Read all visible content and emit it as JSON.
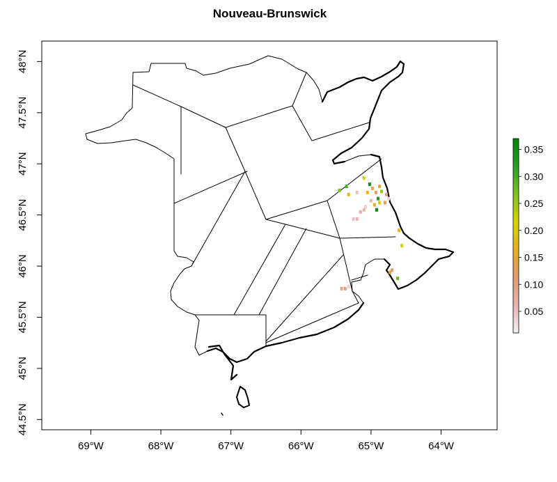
{
  "title": "Nouveau-Brunswick",
  "x_axis": {
    "ticks": [
      {
        "lon": -69,
        "label": "69°W"
      },
      {
        "lon": -68,
        "label": "68°W"
      },
      {
        "lon": -67,
        "label": "67°W"
      },
      {
        "lon": -66,
        "label": "66°W"
      },
      {
        "lon": -65,
        "label": "65°W"
      },
      {
        "lon": -64,
        "label": "64°W"
      }
    ]
  },
  "y_axis": {
    "ticks": [
      {
        "lat": 48.0,
        "label": "48°N"
      },
      {
        "lat": 47.5,
        "label": "47.5°N"
      },
      {
        "lat": 47.0,
        "label": "47°N"
      },
      {
        "lat": 46.5,
        "label": "46.5°N"
      },
      {
        "lat": 46.0,
        "label": "46°N"
      },
      {
        "lat": 45.5,
        "label": "45.5°N"
      },
      {
        "lat": 45.0,
        "label": "45°N"
      },
      {
        "lat": 44.5,
        "label": "44.5°N"
      }
    ]
  },
  "legend": {
    "min": 0.01,
    "max": 0.37,
    "ticks": [
      {
        "value": 0.05,
        "label": "0.05"
      },
      {
        "value": 0.1,
        "label": "0.10"
      },
      {
        "value": 0.15,
        "label": "0.15"
      },
      {
        "value": 0.2,
        "label": "0.20"
      },
      {
        "value": 0.25,
        "label": "0.25"
      },
      {
        "value": 0.3,
        "label": "0.30"
      },
      {
        "value": 0.35,
        "label": "0.35"
      }
    ],
    "colors": [
      "#f2f2f2",
      "#eab2b2",
      "#e39a6e",
      "#e6b020",
      "#d6d600",
      "#7ec41c",
      "#26a026",
      "#008800"
    ]
  },
  "chart_data": {
    "type": "heatmap",
    "title": "Nouveau-Brunswick",
    "xlim": [
      -69.7,
      -63.2
    ],
    "ylim": [
      44.4,
      48.2
    ],
    "xlabel": "",
    "ylabel": "",
    "value_range": [
      0.01,
      0.37
    ],
    "cells": [
      {
        "lon": -65.45,
        "lat": 46.74,
        "value": 0.27
      },
      {
        "lon": -65.35,
        "lat": 46.78,
        "value": 0.3
      },
      {
        "lon": -65.32,
        "lat": 46.7,
        "value": 0.18
      },
      {
        "lon": -65.2,
        "lat": 46.72,
        "value": 0.05
      },
      {
        "lon": -65.1,
        "lat": 46.86,
        "value": 0.22
      },
      {
        "lon": -65.02,
        "lat": 46.8,
        "value": 0.35
      },
      {
        "lon": -64.98,
        "lat": 46.76,
        "value": 0.15
      },
      {
        "lon": -64.93,
        "lat": 46.72,
        "value": 0.12
      },
      {
        "lon": -65.05,
        "lat": 46.72,
        "value": 0.18
      },
      {
        "lon": -64.9,
        "lat": 46.66,
        "value": 0.33
      },
      {
        "lon": -65.0,
        "lat": 46.64,
        "value": 0.06
      },
      {
        "lon": -64.88,
        "lat": 46.62,
        "value": 0.2
      },
      {
        "lon": -64.95,
        "lat": 46.6,
        "value": 0.16
      },
      {
        "lon": -65.08,
        "lat": 46.58,
        "value": 0.04
      },
      {
        "lon": -65.1,
        "lat": 46.55,
        "value": 0.06
      },
      {
        "lon": -65.15,
        "lat": 46.53,
        "value": 0.07
      },
      {
        "lon": -64.92,
        "lat": 46.55,
        "value": 0.36
      },
      {
        "lon": -65.2,
        "lat": 46.46,
        "value": 0.06
      },
      {
        "lon": -65.25,
        "lat": 46.46,
        "value": 0.05
      },
      {
        "lon": -64.8,
        "lat": 46.62,
        "value": 0.12
      },
      {
        "lon": -64.75,
        "lat": 46.66,
        "value": 0.03
      },
      {
        "lon": -64.78,
        "lat": 46.7,
        "value": 0.1
      },
      {
        "lon": -64.88,
        "lat": 46.78,
        "value": 0.14
      },
      {
        "lon": -64.85,
        "lat": 46.73,
        "value": 0.25
      },
      {
        "lon": -64.6,
        "lat": 46.35,
        "value": 0.18
      },
      {
        "lon": -64.56,
        "lat": 46.2,
        "value": 0.22
      },
      {
        "lon": -64.73,
        "lat": 45.94,
        "value": 0.14
      },
      {
        "lon": -64.7,
        "lat": 45.96,
        "value": 0.12
      },
      {
        "lon": -64.62,
        "lat": 45.88,
        "value": 0.28
      },
      {
        "lon": -65.42,
        "lat": 45.78,
        "value": 0.09
      },
      {
        "lon": -65.37,
        "lat": 45.78,
        "value": 0.1
      },
      {
        "lon": -65.32,
        "lat": 45.8,
        "value": 0.04
      }
    ]
  }
}
